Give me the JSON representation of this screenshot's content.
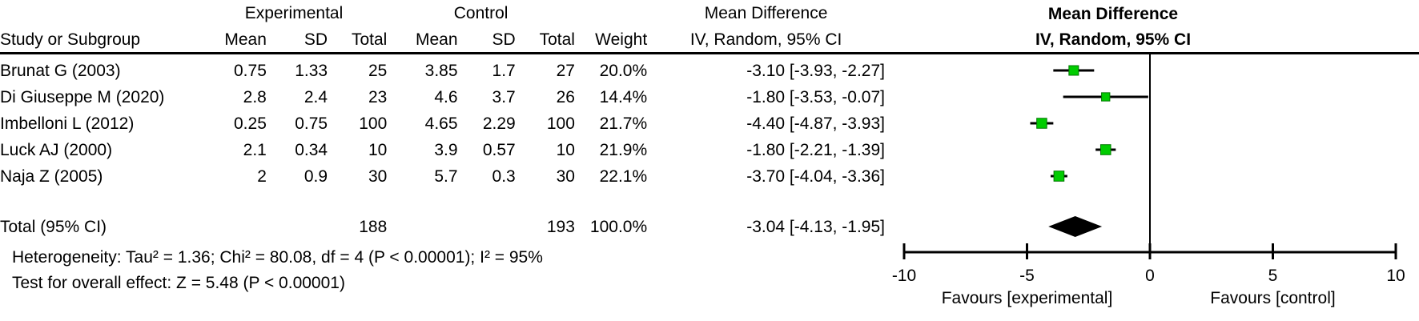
{
  "table": {
    "group_headers": {
      "experimental": "Experimental",
      "control": "Control",
      "mean_difference": "Mean Difference"
    },
    "col_headers": {
      "study": "Study or Subgroup",
      "mean_e": "Mean",
      "sd_e": "SD",
      "total_e": "Total",
      "mean_c": "Mean",
      "sd_c": "SD",
      "total_c": "Total",
      "weight": "Weight",
      "ci": "IV, Random, 95% CI"
    },
    "studies": [
      {
        "name": "Brunat G (2003)",
        "mean_e": "0.75",
        "sd_e": "1.33",
        "total_e": "25",
        "mean_c": "3.85",
        "sd_c": "1.7",
        "total_c": "27",
        "weight": "20.0%",
        "ci_text": "-3.10 [-3.93, -2.27]"
      },
      {
        "name": "Di Giuseppe M (2020)",
        "mean_e": "2.8",
        "sd_e": "2.4",
        "total_e": "23",
        "mean_c": "4.6",
        "sd_c": "3.7",
        "total_c": "26",
        "weight": "14.4%",
        "ci_text": "-1.80 [-3.53, -0.07]"
      },
      {
        "name": "Imbelloni L (2012)",
        "mean_e": "0.25",
        "sd_e": "0.75",
        "total_e": "100",
        "mean_c": "4.65",
        "sd_c": "2.29",
        "total_c": "100",
        "weight": "21.7%",
        "ci_text": "-4.40 [-4.87, -3.93]"
      },
      {
        "name": "Luck AJ (2000)",
        "mean_e": "2.1",
        "sd_e": "0.34",
        "total_e": "10",
        "mean_c": "3.9",
        "sd_c": "0.57",
        "total_c": "10",
        "weight": "21.9%",
        "ci_text": "-1.80 [-2.21, -1.39]"
      },
      {
        "name": "Naja Z (2005)",
        "mean_e": "2",
        "sd_e": "0.9",
        "total_e": "30",
        "mean_c": "5.7",
        "sd_c": "0.3",
        "total_c": "30",
        "weight": "22.1%",
        "ci_text": "-3.70 [-4.04, -3.36]"
      }
    ],
    "total_row": {
      "label": "Total (95% CI)",
      "total_e": "188",
      "total_c": "193",
      "weight": "100.0%",
      "ci_text": "-3.04 [-4.13, -1.95]"
    }
  },
  "footer": {
    "heterogeneity": "Heterogeneity: Tau² = 1.36; Chi² = 80.08, df = 4 (P < 0.00001); I² = 95%",
    "overall_effect": "Test for overall effect: Z = 5.48 (P < 0.00001)"
  },
  "plot": {
    "title": "Mean Difference",
    "subtitle": "IV, Random, 95% CI",
    "favours_left": "Favours [experimental]",
    "favours_right": "Favours [control]",
    "colors": {
      "square_fill": "#00CC00",
      "square_border": "#007700",
      "line": "#000000",
      "diamond": "#000000"
    }
  },
  "chart_data": {
    "type": "forest",
    "effect_measure": "Mean Difference",
    "method": "IV, Random, 95% CI",
    "studies": [
      "Brunat G (2003)",
      "Di Giuseppe M (2020)",
      "Imbelloni L (2012)",
      "Luck AJ (2000)",
      "Naja Z (2005)"
    ],
    "effects": [
      -3.1,
      -1.8,
      -4.4,
      -1.8,
      -3.7
    ],
    "ci_low": [
      -3.93,
      -3.53,
      -4.87,
      -2.21,
      -4.04
    ],
    "ci_high": [
      -2.27,
      -0.07,
      -3.93,
      -1.39,
      -3.36
    ],
    "weights_pct": [
      20.0,
      14.4,
      21.7,
      21.9,
      22.1
    ],
    "experimental": {
      "means": [
        0.75,
        2.8,
        0.25,
        2.1,
        2
      ],
      "sds": [
        1.33,
        2.4,
        0.75,
        0.34,
        0.9
      ],
      "totals": [
        25,
        23,
        100,
        10,
        30
      ],
      "total_n": 188
    },
    "control": {
      "means": [
        3.85,
        4.6,
        4.65,
        3.9,
        5.7
      ],
      "sds": [
        1.7,
        3.7,
        2.29,
        0.57,
        0.3
      ],
      "totals": [
        27,
        26,
        100,
        10,
        30
      ],
      "total_n": 193
    },
    "total": {
      "label": "Total (95% CI)",
      "effect": -3.04,
      "ci_low": -4.13,
      "ci_high": -1.95,
      "weight_pct": 100.0
    },
    "heterogeneity": {
      "tau2": 1.36,
      "chi2": 80.08,
      "df": 4,
      "p": "< 0.00001",
      "i2_pct": 95
    },
    "overall_effect": {
      "z": 5.48,
      "p": "< 0.00001"
    },
    "xlim": [
      -10,
      10
    ],
    "ticks": [
      -10,
      -5,
      0,
      5,
      10
    ],
    "null_line": 0,
    "xlabel_left": "Favours [experimental]",
    "xlabel_right": "Favours [control]"
  }
}
